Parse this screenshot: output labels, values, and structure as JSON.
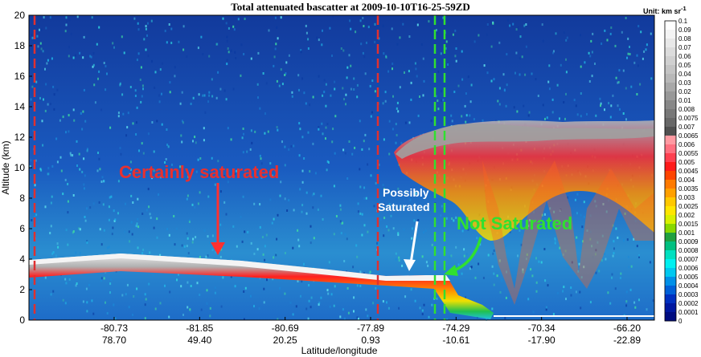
{
  "chart_data": {
    "type": "heatmap",
    "title": "Total attenuated bascatter at 2009-10-10T16-25-59ZD",
    "unit_label": "Unit: km sr",
    "unit_superscript": "-1",
    "ylabel": "Altitude (km)",
    "xlabel": "Latitude/longitude",
    "ylim": [
      0,
      20
    ],
    "yticks": [
      0,
      2,
      4,
      6,
      8,
      10,
      12,
      14,
      16,
      18,
      20
    ],
    "xticks_lat": [
      "-80.73",
      "-81.85",
      "-80.69",
      "-77.89",
      "-74.29",
      "-70.34",
      "-66.20"
    ],
    "xticks_lon": [
      "78.70",
      "49.40",
      "20.25",
      "0.93",
      "-10.61",
      "-17.90",
      "-22.89"
    ],
    "colorbar_ticks": [
      "0.1",
      "0.09",
      "0.08",
      "0.07",
      "0.06",
      "0.05",
      "0.04",
      "0.03",
      "0.02",
      "0.01",
      "0.008",
      "0.0075",
      "0.007",
      "0.0065",
      "0.006",
      "0.0055",
      "0.005",
      "0.0045",
      "0.004",
      "0.0035",
      "0.003",
      "0.0025",
      "0.002",
      "0.0015",
      "0.001",
      "0.0009",
      "0.0008",
      "0.0007",
      "0.0006",
      "0.0005",
      "0.0004",
      "0.0003",
      "0.0002",
      "0.0001",
      "0"
    ],
    "colorbar_colors": [
      "#ffffff",
      "#f4f4f4",
      "#e8e8e8",
      "#dcdcdc",
      "#d0d0d0",
      "#c4c4c4",
      "#b8b8b8",
      "#a8a8a8",
      "#989898",
      "#888888",
      "#787878",
      "#686868",
      "#505050",
      "#ff9aa2",
      "#ff7080",
      "#ff4050",
      "#ff1a1a",
      "#ff4400",
      "#ff7a00",
      "#ffa000",
      "#ffc800",
      "#ffe600",
      "#d8f000",
      "#88d800",
      "#20a040",
      "#00c080",
      "#00e0c0",
      "#00f0f0",
      "#00c8f0",
      "#0090e8",
      "#0060d8",
      "#0030c0",
      "#0018a0",
      "#000c80"
    ],
    "annotations": {
      "certainly": "Certainly saturated",
      "possibly_1": "Possibly",
      "possibly_2": "Saturated",
      "not": "Not Saturated"
    }
  }
}
